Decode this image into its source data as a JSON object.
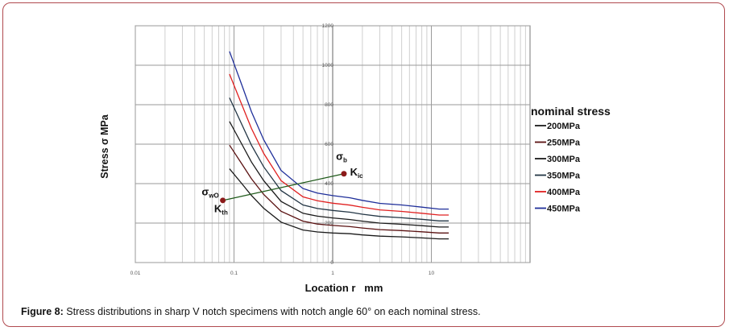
{
  "caption": {
    "label": "Figure 8:",
    "text": " Stress distributions in sharp V notch specimens with notch angle 60° on each nominal stress."
  },
  "chart_data": {
    "type": "line",
    "xscale": "log",
    "xlim": [
      0.01,
      100
    ],
    "ylim": [
      0,
      1200
    ],
    "grid": true,
    "xlabel": "Location r   mm",
    "ylabel": "Stress σ  MPa",
    "xticks": [
      "0.01",
      "0.1",
      "1",
      "10"
    ],
    "yticks": [
      "0",
      "200",
      "400",
      "600",
      "800",
      "1000",
      "1200"
    ],
    "legend_title": "nominal stress",
    "legend_position": "right",
    "series": [
      {
        "name": "200MPa",
        "color": "#1a1a1a",
        "x": [
          0.09,
          0.12,
          0.15,
          0.2,
          0.3,
          0.5,
          0.7,
          1.0,
          1.5,
          2,
          3,
          5,
          8,
          12,
          15
        ],
        "y": [
          475,
          400,
          340,
          275,
          205,
          165,
          155,
          150,
          146,
          140,
          134,
          130,
          125,
          120,
          120
        ]
      },
      {
        "name": "250MPa",
        "color": "#5a1212",
        "x": [
          0.09,
          0.12,
          0.15,
          0.2,
          0.3,
          0.5,
          0.7,
          1.0,
          1.5,
          2,
          3,
          5,
          8,
          12,
          15
        ],
        "y": [
          595,
          500,
          425,
          345,
          260,
          210,
          195,
          188,
          182,
          175,
          167,
          162,
          156,
          150,
          150
        ]
      },
      {
        "name": "300MPa",
        "color": "#1a1a1a",
        "x": [
          0.09,
          0.12,
          0.15,
          0.2,
          0.3,
          0.5,
          0.7,
          1.0,
          1.5,
          2,
          3,
          5,
          8,
          12,
          15
        ],
        "y": [
          715,
          600,
          510,
          415,
          310,
          250,
          235,
          226,
          218,
          210,
          200,
          194,
          187,
          180,
          180
        ]
      },
      {
        "name": "350MPa",
        "color": "#233645",
        "x": [
          0.09,
          0.12,
          0.15,
          0.2,
          0.3,
          0.5,
          0.7,
          1.0,
          1.5,
          2,
          3,
          5,
          8,
          12,
          15
        ],
        "y": [
          835,
          700,
          595,
          485,
          365,
          292,
          274,
          264,
          255,
          245,
          234,
          227,
          219,
          211,
          211
        ]
      },
      {
        "name": "400MPa",
        "color": "#e02020",
        "x": [
          0.09,
          0.12,
          0.15,
          0.2,
          0.3,
          0.5,
          0.7,
          1.0,
          1.5,
          2,
          3,
          5,
          8,
          12,
          15
        ],
        "y": [
          955,
          800,
          680,
          553,
          415,
          333,
          313,
          301,
          291,
          280,
          267,
          259,
          250,
          241,
          241
        ]
      },
      {
        "name": "450MPa",
        "color": "#1f2f9a",
        "x": [
          0.09,
          0.12,
          0.15,
          0.2,
          0.3,
          0.5,
          0.7,
          1.0,
          1.5,
          2,
          3,
          5,
          8,
          12,
          15
        ],
        "y": [
          1070,
          900,
          765,
          622,
          467,
          375,
          352,
          339,
          328,
          315,
          300,
          292,
          281,
          271,
          271
        ]
      }
    ],
    "annotations": {
      "line": {
        "color": "#1f5a1a",
        "from": [
          0.077,
          315
        ],
        "to": [
          1.3,
          450
        ]
      },
      "points": [
        {
          "x": 0.077,
          "y": 315,
          "color": "#8b1a1a"
        },
        {
          "x": 1.3,
          "y": 450,
          "color": "#8b1a1a"
        }
      ],
      "labels": [
        {
          "text": "σwO",
          "x": 0.047,
          "y": 340
        },
        {
          "text": "Kth",
          "x": 0.063,
          "y": 255
        },
        {
          "text": "σb",
          "x": 1.08,
          "y": 520
        },
        {
          "text": "Kic",
          "x": 1.5,
          "y": 440
        }
      ]
    }
  }
}
